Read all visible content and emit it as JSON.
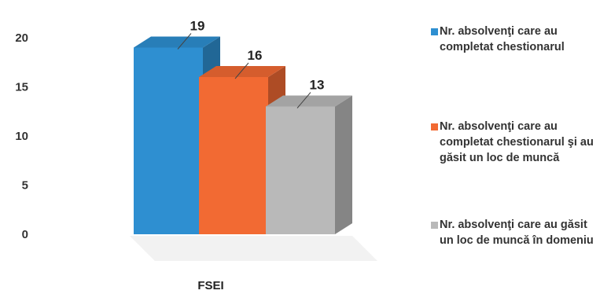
{
  "chart_data": {
    "type": "bar",
    "categories": [
      "FSEI"
    ],
    "series": [
      {
        "name": "Nr. absolvenţi care au completat chestionarul",
        "values": [
          19
        ],
        "color": "#2e8fd1"
      },
      {
        "name": "Nr. absolvenţi care au completat chestionarul şi au găsit un loc de muncă",
        "values": [
          16
        ],
        "color": "#f26a33"
      },
      {
        "name": "Nr. absolvenţi care au găsit un loc de muncă în domeniu",
        "values": [
          13
        ],
        "color": "#b9b9b9"
      }
    ],
    "ylim": [
      0,
      20
    ],
    "yticks": [
      0,
      5,
      10,
      15,
      20
    ],
    "xlabel": "",
    "ylabel": "",
    "title": "",
    "grid": false,
    "legend_position": "right",
    "three_d": true,
    "data_labels": true
  }
}
